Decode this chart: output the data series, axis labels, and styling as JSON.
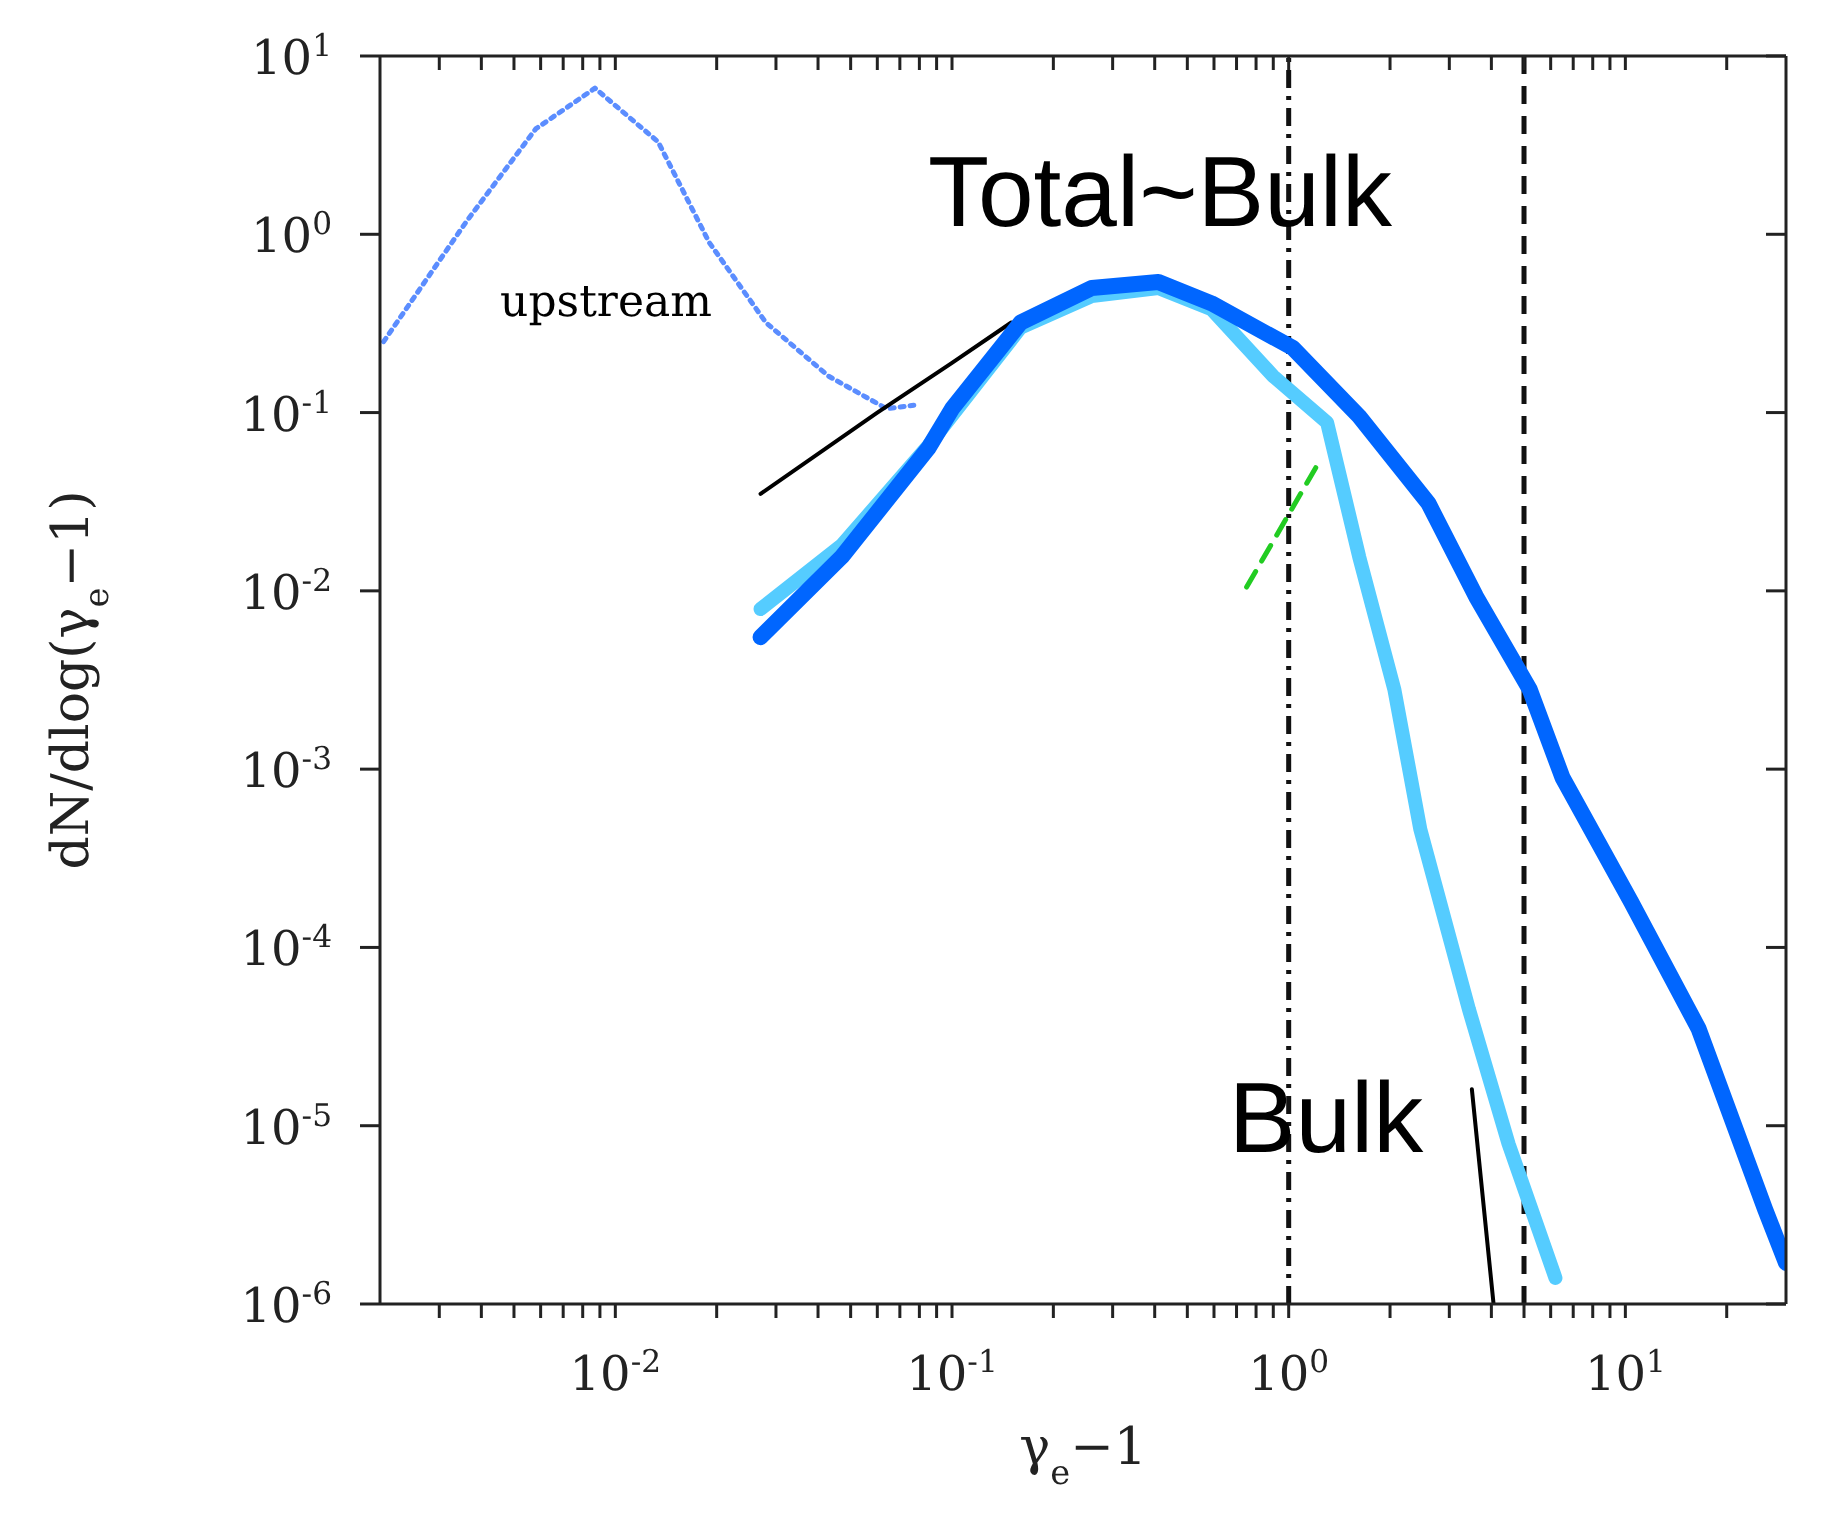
{
  "chart_data": {
    "type": "line",
    "xlabel": "γ$_{e}$−1",
    "ylabel": "dN/dlog(γ$_{e}$−1)",
    "log": "xy",
    "xlim": [
      0.002,
      30
    ],
    "ylim": [
      1e-06,
      10
    ],
    "xticks": [
      {
        "value": 0.003,
        "label": null
      },
      {
        "value": 0.004,
        "label": null
      },
      {
        "value": 0.005,
        "label": null
      },
      {
        "value": 0.006,
        "label": null
      },
      {
        "value": 0.007,
        "label": null
      },
      {
        "value": 0.008,
        "label": null
      },
      {
        "value": 0.009,
        "label": null
      },
      {
        "value": 0.01,
        "label": "10$^{-2}$"
      },
      {
        "value": 0.02,
        "label": null
      },
      {
        "value": 0.03,
        "label": null
      },
      {
        "value": 0.04,
        "label": null
      },
      {
        "value": 0.05,
        "label": null
      },
      {
        "value": 0.06,
        "label": null
      },
      {
        "value": 0.07,
        "label": null
      },
      {
        "value": 0.08,
        "label": null
      },
      {
        "value": 0.09,
        "label": null
      },
      {
        "value": 0.1,
        "label": "10$^{-1}$"
      },
      {
        "value": 0.2,
        "label": null
      },
      {
        "value": 0.3,
        "label": null
      },
      {
        "value": 0.4,
        "label": null
      },
      {
        "value": 0.5,
        "label": null
      },
      {
        "value": 0.6,
        "label": null
      },
      {
        "value": 0.7,
        "label": null
      },
      {
        "value": 0.8,
        "label": null
      },
      {
        "value": 0.9,
        "label": null
      },
      {
        "value": 1,
        "label": "10$^{0}$"
      },
      {
        "value": 2,
        "label": null
      },
      {
        "value": 3,
        "label": null
      },
      {
        "value": 4,
        "label": null
      },
      {
        "value": 5,
        "label": null
      },
      {
        "value": 6,
        "label": null
      },
      {
        "value": 7,
        "label": null
      },
      {
        "value": 8,
        "label": null
      },
      {
        "value": 9,
        "label": null
      },
      {
        "value": 10,
        "label": "10$^{1}$"
      },
      {
        "value": 20,
        "label": null
      }
    ],
    "yticks": [
      {
        "value": 1e-06,
        "label": "10$^{-6}$"
      },
      {
        "value": 1e-05,
        "label": "10$^{-5}$"
      },
      {
        "value": 0.0001,
        "label": "10$^{-4}$"
      },
      {
        "value": 0.001,
        "label": "10$^{-3}$"
      },
      {
        "value": 0.01,
        "label": "10$^{-2}$"
      },
      {
        "value": 0.1,
        "label": "10$^{-1}$"
      },
      {
        "value": 1,
        "label": "10$^{0}$"
      },
      {
        "value": 10,
        "label": "10$^{1}$"
      }
    ],
    "grid": false,
    "legend": false,
    "marker": "none",
    "series": [
      {
        "color": "#5b8dff",
        "line_style": "dotted",
        "x": [
          0.00205,
          0.0036,
          0.0058,
          0.0087,
          0.0134,
          0.019,
          0.028,
          0.043,
          0.064,
          0.077
        ],
        "values": [
          0.25,
          1.17,
          3.9,
          6.6,
          3.3,
          0.9,
          0.32,
          0.16,
          0.105,
          0.11
        ]
      },
      {
        "color": "#000000",
        "line_style": "solid",
        "x": [
          0.027,
          0.06,
          0.1,
          0.15,
          1.0,
          3.0,
          3.5,
          4.06
        ],
        "values": [
          0.035,
          0.1,
          0.19,
          0.32,
          null,
          null,
          1.6e-05,
          1e-06
        ]
      },
      {
        "color": "#55ccff",
        "line_style": "solid",
        "x": [
          0.027,
          0.047,
          0.085,
          0.16,
          0.26,
          0.41,
          0.59,
          0.9,
          1.3,
          1.62,
          2.06,
          2.46,
          3.43,
          4.5,
          6.2
        ],
        "values": [
          0.0079,
          0.018,
          0.065,
          0.3,
          0.45,
          0.5,
          0.38,
          0.16,
          0.088,
          0.0155,
          0.0028,
          0.00046,
          4.5e-05,
          7.9e-06,
          1.4e-06
        ]
      },
      {
        "color": "#0066ff",
        "line_style": "solid",
        "x": [
          0.027,
          0.047,
          0.085,
          0.1,
          0.16,
          0.26,
          0.41,
          0.59,
          1.03,
          1.62,
          2.6,
          3.6,
          5.2,
          6.5,
          10.4,
          16.5,
          26,
          30
        ],
        "values": [
          0.0055,
          0.0155,
          0.063,
          0.105,
          0.32,
          0.5,
          0.54,
          0.41,
          0.23,
          0.095,
          0.031,
          0.0093,
          0.0028,
          0.0009,
          0.00018,
          3.5e-05,
          3.4e-06,
          1.7e-06
        ]
      },
      {
        "color": "#22cc22",
        "line_style": "dashed",
        "x": [
          0.75,
          1.21
        ],
        "values": [
          0.0105,
          0.05
        ]
      }
    ],
    "ref_lines": [
      {
        "axis": "x",
        "value": 1,
        "color": "#111111",
        "line_style": "dashdot"
      },
      {
        "axis": "x",
        "value": 5,
        "color": "#111111",
        "line_style": "dashed"
      }
    ],
    "annotations": [
      "upstream",
      "Total~Bulk",
      "Bulk"
    ]
  }
}
